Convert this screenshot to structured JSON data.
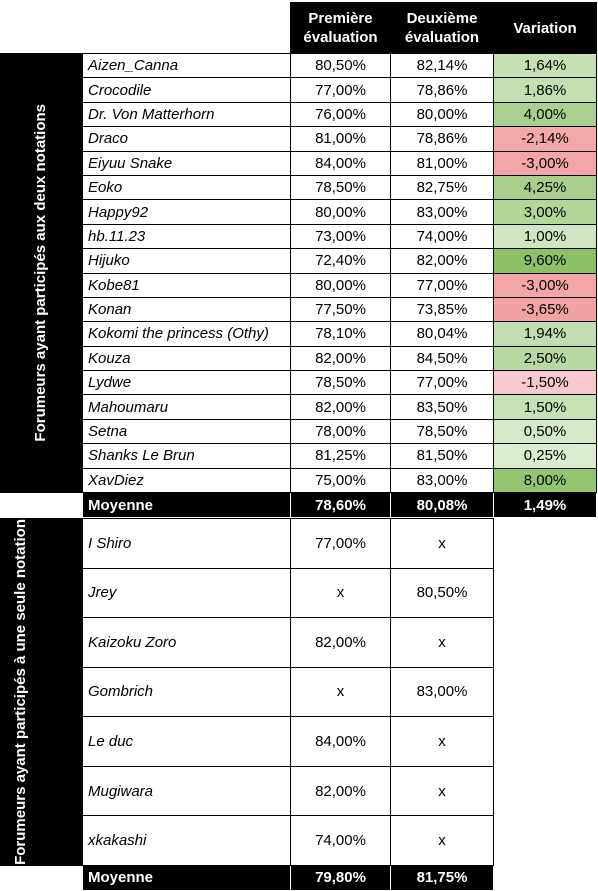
{
  "header": {
    "columns": [
      "Première évaluation",
      "Deuxième évaluation",
      "Variation"
    ]
  },
  "section1": {
    "label": "Forumeurs ayant participés aux deux notations",
    "rows": [
      [
        "Aizen_Canna",
        "80,50%",
        "82,14%",
        "1,64%"
      ],
      [
        "Crocodile",
        "77,00%",
        "78,86%",
        "1,86%"
      ],
      [
        "Dr. Von Matterhorn",
        "76,00%",
        "80,00%",
        "4,00%"
      ],
      [
        "Draco",
        "81,00%",
        "78,86%",
        "-2,14%"
      ],
      [
        "Eiyuu Snake",
        "84,00%",
        "81,00%",
        "-3,00%"
      ],
      [
        "Eoko",
        "78,50%",
        "82,75%",
        "4,25%"
      ],
      [
        "Happy92",
        "80,00%",
        "83,00%",
        "3,00%"
      ],
      [
        "hb.11.23",
        "73,00%",
        "74,00%",
        "1,00%"
      ],
      [
        "Hijuko",
        "72,40%",
        "82,00%",
        "9,60%"
      ],
      [
        "Kobe81",
        "80,00%",
        "77,00%",
        "-3,00%"
      ],
      [
        "Konan",
        "77,50%",
        "73,85%",
        "-3,65%"
      ],
      [
        "Kokomi the princess (Othy)",
        "78,10%",
        "80,04%",
        "1,94%"
      ],
      [
        "Kouza",
        "82,00%",
        "84,50%",
        "2,50%"
      ],
      [
        "Lydwe",
        "78,50%",
        "77,00%",
        "-1,50%"
      ],
      [
        "Mahoumaru",
        "82,00%",
        "83,50%",
        "1,50%"
      ],
      [
        "Setna",
        "78,00%",
        "78,50%",
        "0,50%"
      ],
      [
        "Shanks Le Brun",
        "81,25%",
        "81,50%",
        "0,25%"
      ],
      [
        "XavDiez",
        "75,00%",
        "83,00%",
        "8,00%"
      ]
    ],
    "fills": [
      "#c6e0b4",
      "#c4dfb1",
      "#a9d08e",
      "#f4a9a9",
      "#f4a5a5",
      "#a7cf8b",
      "#b3d699",
      "#d0e6c2",
      "#8cc168",
      "#f4a5a5",
      "#f3a2a2",
      "#c3deb0",
      "#b8d99f",
      "#f8c9cc",
      "#c7e1b6",
      "#d5e9c8",
      "#dbecd0",
      "#93c470"
    ],
    "average": [
      "Moyenne",
      "78,60%",
      "80,08%",
      "1,49%"
    ]
  },
  "section2": {
    "label": "Forumeurs ayant participés à une seule notation",
    "rows": [
      [
        "I Shiro",
        "77,00%",
        "x"
      ],
      [
        "Jrey",
        "x",
        "80,50%"
      ],
      [
        "Kaizoku Zoro",
        "82,00%",
        "x"
      ],
      [
        "Gombrich",
        "x",
        "83,00%"
      ],
      [
        "Le duc",
        "84,00%",
        "x"
      ],
      [
        "Mugiwara",
        "82,00%",
        "x"
      ],
      [
        "xkakashi",
        "74,00%",
        "x"
      ]
    ],
    "average": [
      "Moyenne",
      "79,80%",
      "81,75%"
    ]
  }
}
